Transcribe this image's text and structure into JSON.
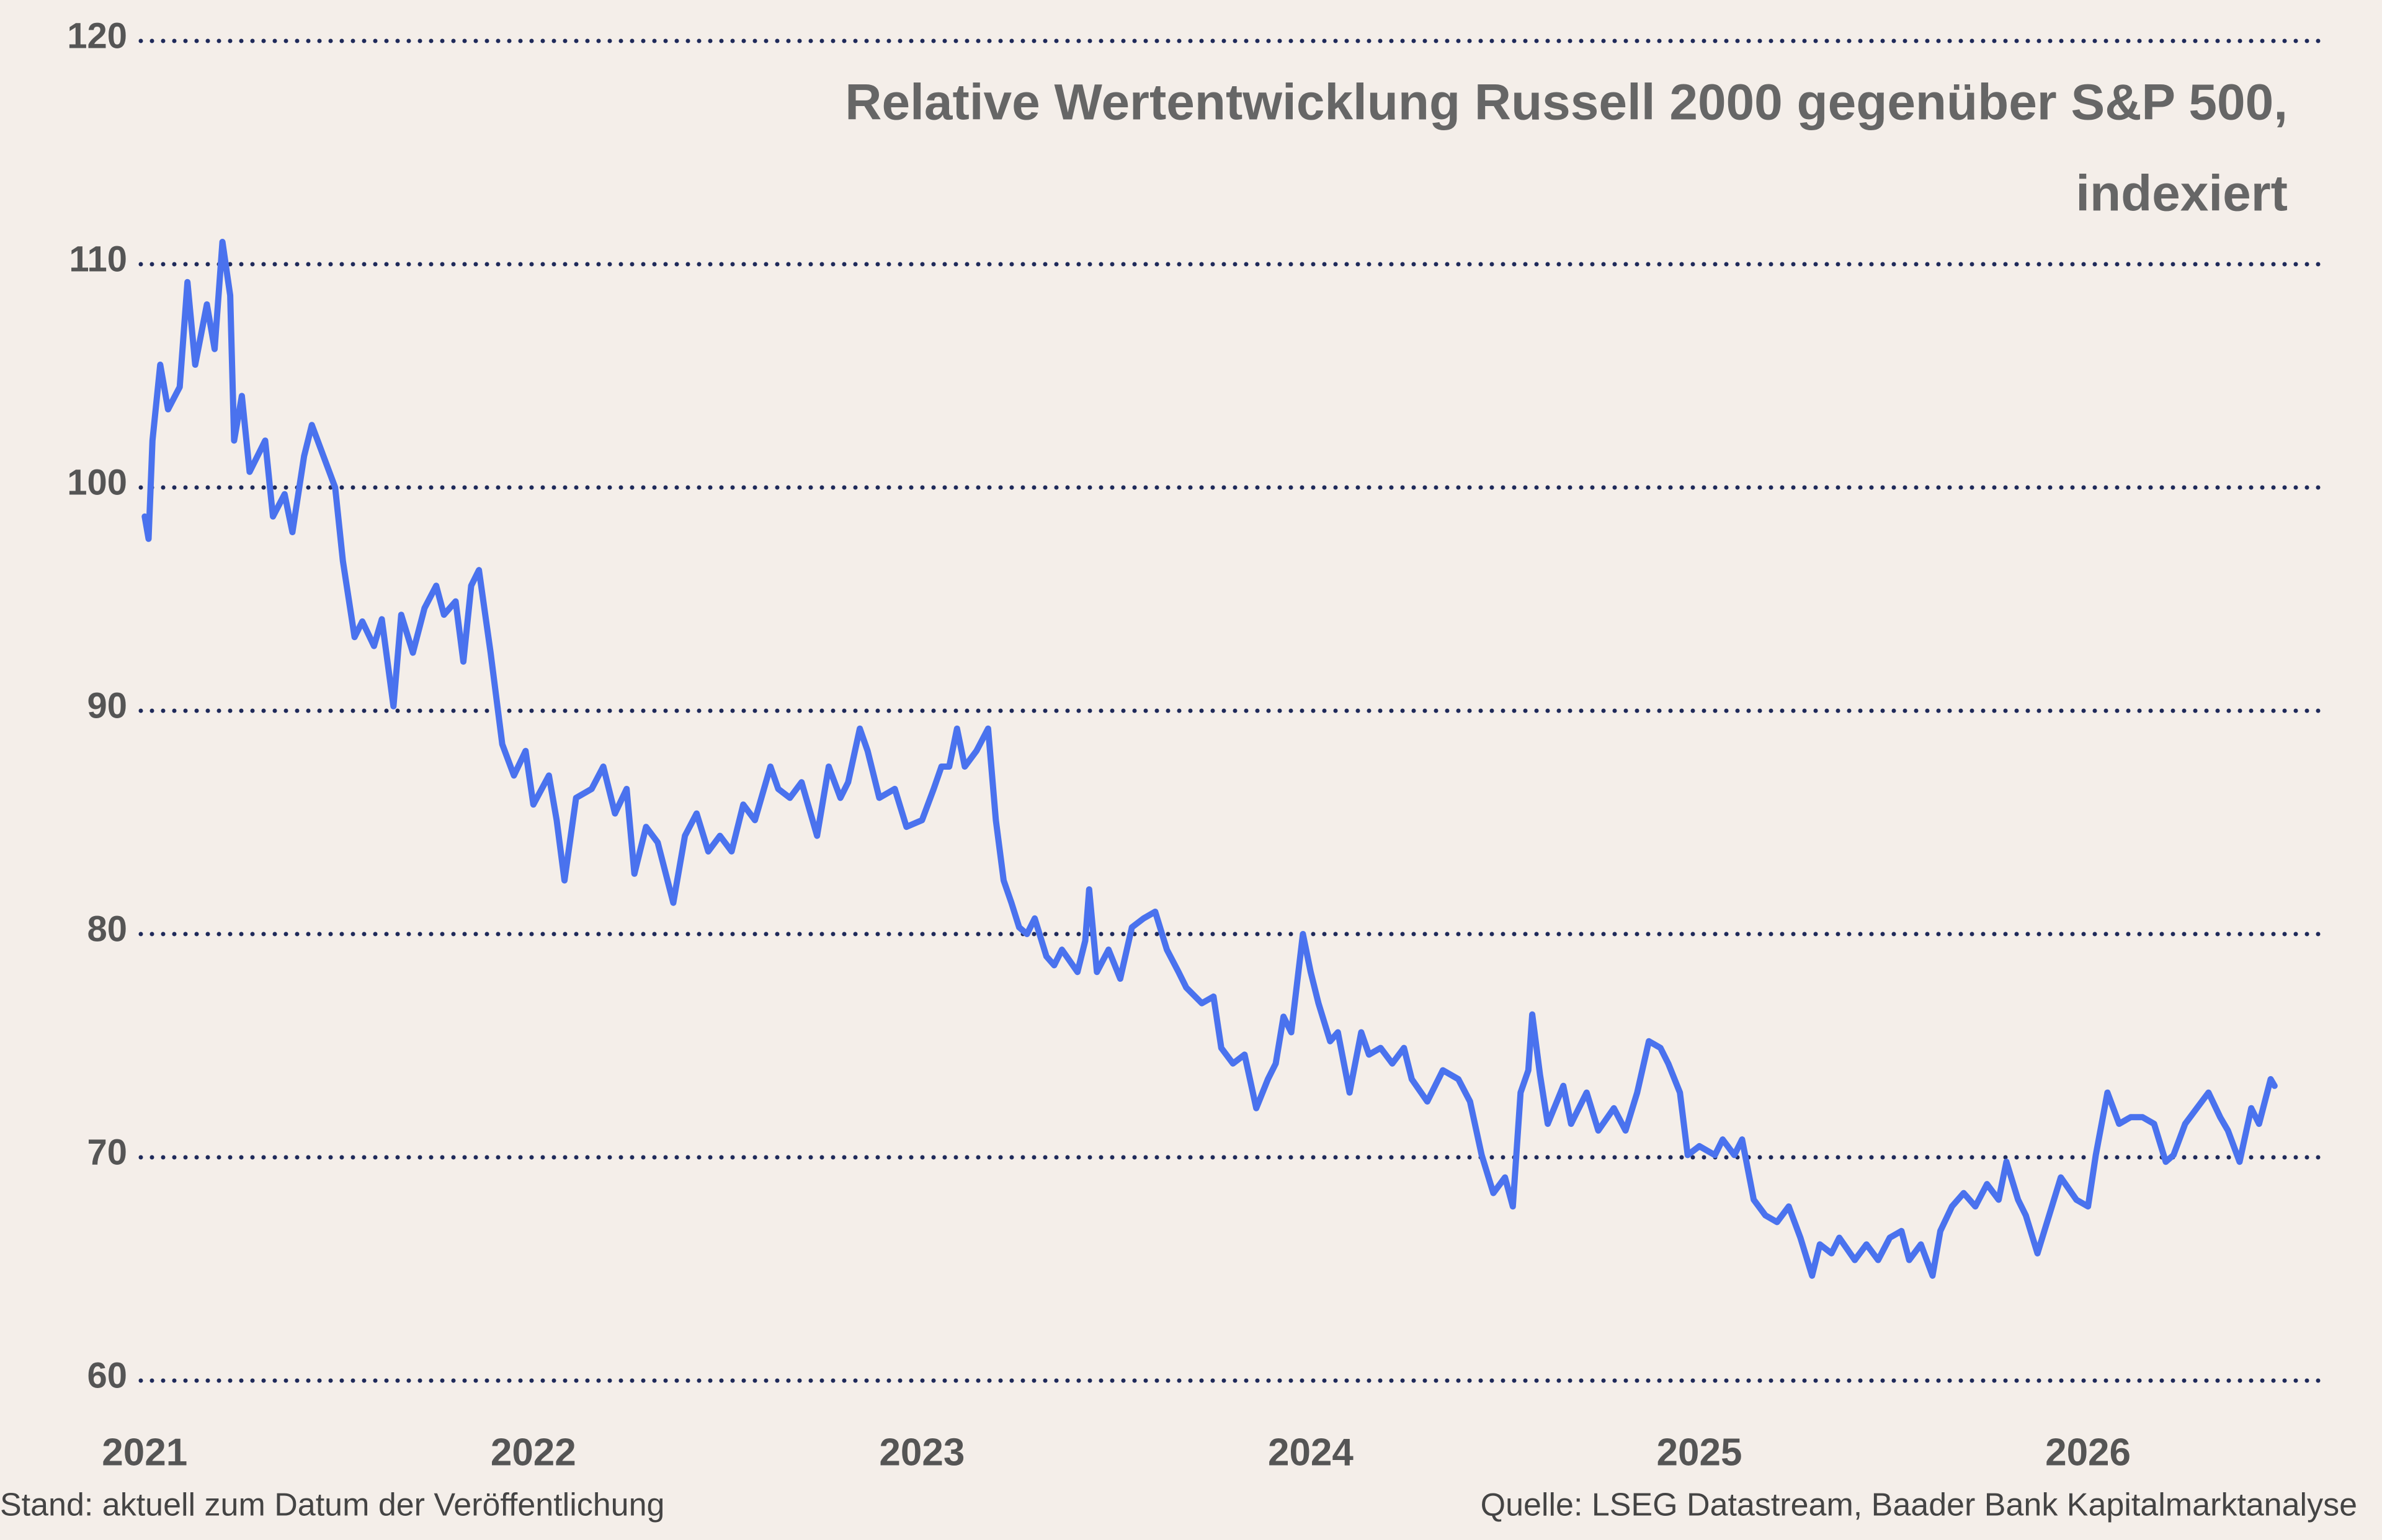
{
  "chart_data": {
    "type": "line",
    "title": [
      "Relative Wertentwicklung Russell 2000 gegenüber S&P 500,",
      "indexiert"
    ],
    "footnote": "Stand: aktuell zum Datum der Veröffentlichung",
    "source": "Quelle: LSEG Datastream, Baader Bank Kapitalmarktanalyse",
    "xlim": [
      2020.99,
      2026.6
    ],
    "xticks": [
      2021,
      2022,
      2023,
      2024,
      2025,
      2026
    ],
    "ylim": [
      60,
      120
    ],
    "yticks": [
      60,
      70,
      80,
      90,
      100,
      110,
      120
    ],
    "grid": true,
    "grid_color": "#1f2a5a",
    "x": [
      2021.0,
      2021.01,
      2021.02,
      2021.04,
      2021.06,
      2021.09,
      2021.11,
      2021.13,
      2021.16,
      2021.18,
      2021.2,
      2021.22,
      2021.23,
      2021.25,
      2021.27,
      2021.31,
      2021.33,
      2021.36,
      2021.38,
      2021.41,
      2021.43,
      2021.46,
      2021.49,
      2021.51,
      2021.54,
      2021.56,
      2021.59,
      2021.61,
      2021.64,
      2021.66,
      2021.69,
      2021.72,
      2021.75,
      2021.77,
      2021.8,
      2021.82,
      2021.84,
      2021.86,
      2021.89,
      2021.92,
      2021.95,
      2021.98,
      2022.0,
      2022.04,
      2022.06,
      2022.08,
      2022.11,
      2022.15,
      2022.18,
      2022.21,
      2022.24,
      2022.26,
      2022.29,
      2022.32,
      2022.36,
      2022.39,
      2022.42,
      2022.45,
      2022.48,
      2022.51,
      2022.54,
      2022.57,
      2022.61,
      2022.63,
      2022.66,
      2022.69,
      2022.73,
      2022.76,
      2022.79,
      2022.81,
      2022.84,
      2022.86,
      2022.89,
      2022.93,
      2022.96,
      2023.0,
      2023.03,
      2023.05,
      2023.07,
      2023.09,
      2023.11,
      2023.14,
      2023.17,
      2023.19,
      2023.21,
      2023.23,
      2023.25,
      2023.27,
      2023.29,
      2023.32,
      2023.34,
      2023.36,
      2023.4,
      2023.42,
      2023.43,
      2023.45,
      2023.48,
      2023.51,
      2023.54,
      2023.57,
      2023.6,
      2023.63,
      2023.66,
      2023.68,
      2023.72,
      2023.75,
      2023.77,
      2023.8,
      2023.83,
      2023.86,
      2023.89,
      2023.91,
      2023.93,
      2023.95,
      2023.98,
      2024.0,
      2024.02,
      2024.05,
      2024.07,
      2024.1,
      2024.13,
      2024.15,
      2024.18,
      2024.21,
      2024.24,
      2024.26,
      2024.3,
      2024.34,
      2024.38,
      2024.41,
      2024.44,
      2024.47,
      2024.5,
      2024.52,
      2024.54,
      2024.56,
      2024.57,
      2024.59,
      2024.61,
      2024.65,
      2024.67,
      2024.71,
      2024.74,
      2024.78,
      2024.81,
      2024.84,
      2024.87,
      2024.9,
      2024.92,
      2024.95,
      2024.97,
      2025.0,
      2025.04,
      2025.06,
      2025.09,
      2025.11,
      2025.14,
      2025.17,
      2025.2,
      2025.23,
      2025.26,
      2025.29,
      2025.31,
      2025.34,
      2025.36,
      2025.4,
      2025.43,
      2025.46,
      2025.49,
      2025.52,
      2025.54,
      2025.57,
      2025.6,
      2025.62,
      2025.65,
      2025.68,
      2025.71,
      2025.74,
      2025.77,
      2025.79,
      2025.82,
      2025.84,
      2025.87,
      2025.9,
      2025.93,
      2025.97,
      2026.0,
      2026.02,
      2026.05,
      2026.08,
      2026.11,
      2026.14,
      2026.17,
      2026.2,
      2026.22,
      2026.25,
      2026.28,
      2026.31,
      2026.34,
      2026.36,
      2026.39,
      2026.42,
      2026.44,
      2026.47,
      2026.48
    ],
    "series": [
      {
        "name": "Russell 2000 / S&P 500",
        "color": "#4a72ee",
        "values": [
          98.7,
          97.7,
          102.1,
          105.5,
          103.5,
          104.5,
          109.2,
          105.5,
          108.2,
          106.2,
          111,
          108.6,
          102.1,
          104.1,
          100.7,
          102.1,
          98.7,
          99.7,
          98,
          101.4,
          102.8,
          101.4,
          100,
          96.7,
          93.3,
          94,
          92.9,
          94.1,
          90.2,
          94.3,
          92.6,
          94.6,
          95.6,
          94.3,
          94.9,
          92.2,
          95.6,
          96.3,
          92.6,
          88.5,
          87.1,
          88.2,
          85.8,
          87.1,
          85.1,
          82.4,
          86.1,
          86.5,
          87.5,
          85.4,
          86.5,
          82.7,
          84.8,
          84.1,
          81.4,
          84.4,
          85.4,
          83.7,
          84.4,
          83.7,
          85.8,
          85.1,
          87.5,
          86.5,
          86.1,
          86.8,
          84.4,
          87.5,
          86.1,
          86.8,
          89.2,
          88.2,
          86.1,
          86.5,
          84.8,
          85.1,
          86.5,
          87.5,
          87.5,
          89.2,
          87.5,
          88.2,
          89.2,
          85.1,
          82.4,
          81.4,
          80.3,
          80,
          80.7,
          79,
          78.6,
          79.3,
          78.3,
          79.7,
          82,
          78.3,
          79.3,
          78,
          80.3,
          80.7,
          81,
          79.3,
          78.3,
          77.6,
          76.9,
          77.2,
          74.9,
          74.2,
          74.6,
          72.2,
          73.5,
          74.2,
          76.3,
          75.6,
          80,
          78.3,
          76.9,
          75.2,
          75.6,
          72.9,
          75.6,
          74.6,
          74.9,
          74.2,
          74.9,
          73.5,
          72.5,
          73.9,
          73.5,
          72.5,
          70.1,
          68.4,
          69.1,
          67.8,
          72.9,
          73.9,
          76.4,
          73.7,
          71.5,
          73.2,
          71.5,
          72.9,
          71.2,
          72.2,
          71.2,
          72.9,
          75.2,
          74.9,
          74.2,
          72.9,
          70.1,
          70.5,
          70.1,
          70.8,
          70.1,
          70.8,
          68.1,
          67.4,
          67.1,
          67.8,
          66.4,
          64.7,
          66.1,
          65.7,
          66.4,
          65.4,
          66.1,
          65.4,
          66.4,
          66.7,
          65.4,
          66.1,
          64.7,
          66.7,
          67.8,
          68.4,
          67.8,
          68.8,
          68.1,
          69.8,
          68.1,
          67.4,
          65.7,
          67.4,
          69.1,
          68.1,
          67.8,
          70.1,
          72.9,
          71.5,
          71.8,
          71.8,
          71.5,
          69.8,
          70.1,
          71.5,
          72.2,
          72.9,
          71.8,
          71.2,
          69.8,
          72.2,
          71.5,
          73.5,
          73.2
        ]
      }
    ]
  }
}
